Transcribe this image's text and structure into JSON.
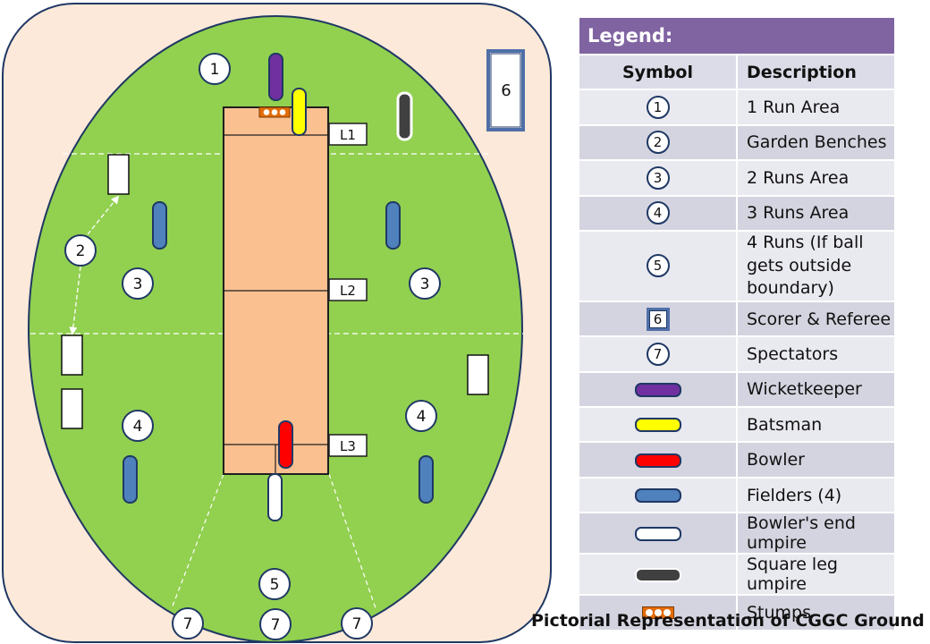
{
  "ground": {
    "area_labels": {
      "one_run": "1",
      "benches": "2",
      "two_runs_left": "3",
      "two_runs_right": "3",
      "three_runs_left": "4",
      "three_runs_right": "4",
      "four_runs": "5",
      "scorer": "6",
      "spectators_left": "7",
      "spectators_center": "7",
      "spectators_right": "7"
    },
    "lines": {
      "l1": "L1",
      "l2": "L2",
      "l3": "L3"
    }
  },
  "legend": {
    "title": "Legend:",
    "col_symbol": "Symbol",
    "col_description": "Description",
    "rows": [
      {
        "symbol": "1",
        "description": "1 Run Area"
      },
      {
        "symbol": "2",
        "description": "Garden Benches"
      },
      {
        "symbol": "3",
        "description": "2 Runs Area"
      },
      {
        "symbol": "4",
        "description": "3 Runs Area"
      },
      {
        "symbol": "5",
        "description": "4 Runs (If ball gets outside boundary)"
      },
      {
        "symbol": "6",
        "description": "Scorer & Referee"
      },
      {
        "symbol": "7",
        "description": "Spectators"
      },
      {
        "symbol": "",
        "description": "Wicketkeeper",
        "color": "#7030a0"
      },
      {
        "symbol": "",
        "description": "Batsman",
        "color": "#ffff00"
      },
      {
        "symbol": "",
        "description": "Bowler",
        "color": "#ff0000"
      },
      {
        "symbol": "",
        "description": "Fielders (4)",
        "color": "#4f81bd"
      },
      {
        "symbol": "",
        "description": "Bowler's end umpire",
        "color": "#ffffff"
      },
      {
        "symbol": "",
        "description": "Square leg umpire",
        "color": "#404040"
      },
      {
        "symbol": "",
        "description": "Stumps",
        "color": "#e36c09"
      }
    ]
  },
  "caption": "Pictorial Representation of CGGC Ground",
  "colors": {
    "outer": "#fde9d9",
    "field": "#92d050",
    "pitch": "#fac090",
    "legend_header": "#8064a2"
  }
}
